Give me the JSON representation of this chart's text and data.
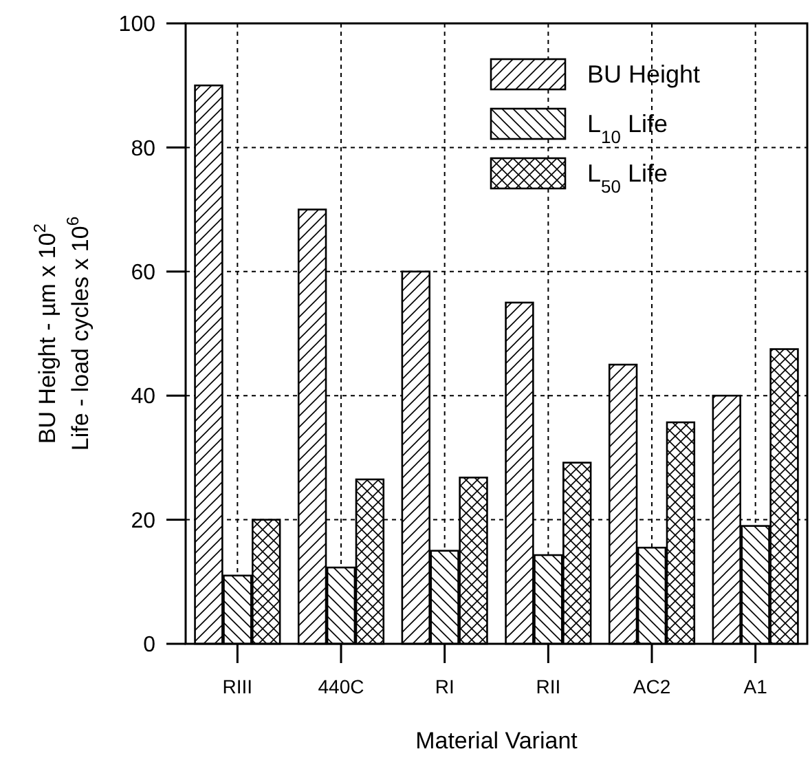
{
  "chart_data": {
    "type": "bar",
    "xlabel": "Material Variant",
    "ylabel": "BU Height - µm x 10$^{2}$\nLife - load cycles x 10$^{6}$",
    "categories": [
      "RIII",
      "440C",
      "RI",
      "RII",
      "AC2",
      "A1"
    ],
    "series": [
      {
        "name": "BU Height",
        "color": "#000000",
        "values": [
          90,
          70,
          60,
          55,
          45,
          40
        ]
      },
      {
        "name": "L$_{10}$ Life",
        "color": "#000000",
        "values": [
          11,
          12.3,
          15,
          14.3,
          15.5,
          19
        ]
      },
      {
        "name": "L$_{50}$ Life",
        "color": "#000000",
        "values": [
          20,
          26.5,
          26.8,
          29.2,
          35.7,
          47.5
        ]
      }
    ],
    "ylim": [
      0,
      100
    ],
    "yticks": [
      0,
      20,
      40,
      60,
      80,
      100
    ],
    "grid": true,
    "legend": "top right"
  }
}
